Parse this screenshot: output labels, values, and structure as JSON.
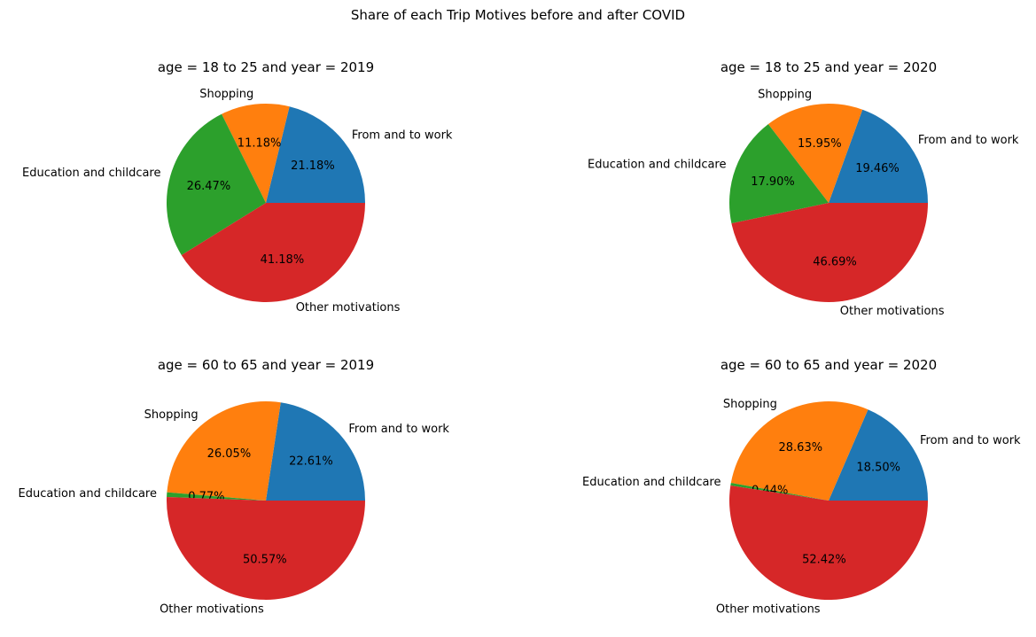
{
  "figure": {
    "suptitle": "Share of each Trip Motives before and after COVID"
  },
  "colors": {
    "From and to work": "#1f77b4",
    "Shopping": "#ff7f0e",
    "Education and childcare": "#2ca02c",
    "Other motivations": "#d62728"
  },
  "chart_data": [
    {
      "type": "pie",
      "title": "age = 18 to 25 and year = 2019",
      "labels": [
        "From and to work",
        "Shopping",
        "Education and childcare",
        "Other motivations"
      ],
      "values": [
        21.18,
        11.18,
        26.47,
        41.18
      ],
      "value_labels": [
        "21.18%",
        "11.18%",
        "26.47%",
        "41.18%"
      ]
    },
    {
      "type": "pie",
      "title": "age = 18 to 25 and year = 2020",
      "labels": [
        "From and to work",
        "Shopping",
        "Education and childcare",
        "Other motivations"
      ],
      "values": [
        19.46,
        15.95,
        17.9,
        46.69
      ],
      "value_labels": [
        "19.46%",
        "15.95%",
        "17.90%",
        "46.69%"
      ]
    },
    {
      "type": "pie",
      "title": "age = 60 to 65 and year = 2019",
      "labels": [
        "From and to work",
        "Shopping",
        "Education and childcare",
        "Other motivations"
      ],
      "values": [
        22.61,
        26.05,
        0.77,
        50.57
      ],
      "value_labels": [
        "22.61%",
        "26.05%",
        "0.77%",
        "50.57%"
      ]
    },
    {
      "type": "pie",
      "title": "age = 60 to 65 and year = 2020",
      "labels": [
        "From and to work",
        "Shopping",
        "Education and childcare",
        "Other motivations"
      ],
      "values": [
        18.5,
        28.63,
        0.44,
        52.42
      ],
      "value_labels": [
        "18.50%",
        "28.63%",
        "0.44%",
        "52.42%"
      ]
    }
  ]
}
